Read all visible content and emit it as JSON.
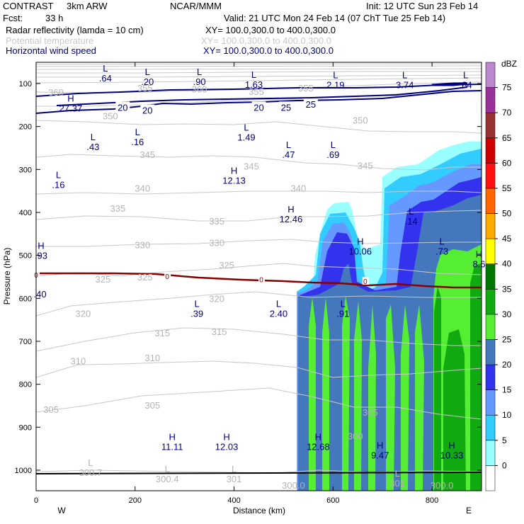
{
  "header": {
    "project": "CONTRAST",
    "model": "3km ARW",
    "org": "NCAR/MMM",
    "init": "Init: 12 UTC Sun 23 Feb 14",
    "fcst_label": "Fcst:",
    "fcst_value": "33 h",
    "valid": "Valid: 21 UTC Mon 24 Feb 14 (07 ChT Tue 25 Feb 14)"
  },
  "fields": [
    {
      "name": "Radar reflectivity (lamda = 10 cm)",
      "xy": "XY= 100.0,300.0 to 400.0,300.0",
      "color": "#000000"
    },
    {
      "name": "Potential temperature",
      "xy": "XY= 100.0,300.0 to 400.0,300.0",
      "color": "#c8c8c8"
    },
    {
      "name": "Horizontal wind speed",
      "xy": "XY= 100.0,300.0 to 400.0,300.0",
      "color": "#000080"
    }
  ],
  "chart_data": {
    "type": "cross-section",
    "xlabel": "Distance (km)",
    "ylabel": "Pressure (hPa)",
    "xlim": [
      0,
      900
    ],
    "ylim": [
      1050,
      65
    ],
    "xticks": [
      "0",
      "200",
      "400",
      "600",
      "800"
    ],
    "yticks": [
      "100",
      "200",
      "300",
      "400",
      "500",
      "600",
      "700",
      "800",
      "900",
      "1000"
    ],
    "left_end": "W",
    "right_end": "E",
    "colorbar": {
      "unit": "dBZ",
      "levels": [
        "0",
        "5",
        "10",
        "15",
        "20",
        "25",
        "30",
        "35",
        "40",
        "45",
        "50",
        "55",
        "60",
        "65",
        "70",
        "75"
      ],
      "colors": [
        "#ffffff",
        "#99ffff",
        "#33ccff",
        "#6699ff",
        "#3333ee",
        "#4477bb",
        "#55ee33",
        "#11aa11",
        "#007700",
        "#ffff00",
        "#ffaa00",
        "#ff6600",
        "#ff1111",
        "#cc0000",
        "#993333",
        "#993399",
        "#bb88cc"
      ]
    },
    "theta_labels": [
      {
        "text": "350",
        "x": 150,
        "p": 175
      },
      {
        "text": "350",
        "x": 655,
        "p": 185
      },
      {
        "text": "345",
        "x": 225,
        "p": 265
      },
      {
        "text": "345",
        "x": 435,
        "p": 292
      },
      {
        "text": "345",
        "x": 665,
        "p": 290
      },
      {
        "text": "340",
        "x": 215,
        "p": 343
      },
      {
        "text": "340",
        "x": 530,
        "p": 343
      },
      {
        "text": "335",
        "x": 165,
        "p": 390
      },
      {
        "text": "335",
        "x": 365,
        "p": 420
      },
      {
        "text": "330",
        "x": 215,
        "p": 475
      },
      {
        "text": "330",
        "x": 365,
        "p": 470
      },
      {
        "text": "325",
        "x": 385,
        "p": 522
      },
      {
        "text": "325",
        "x": 220,
        "p": 550
      },
      {
        "text": "325",
        "x": 135,
        "p": 555
      },
      {
        "text": "320",
        "x": 95,
        "p": 635
      },
      {
        "text": "320",
        "x": 365,
        "p": 600
      },
      {
        "text": "315",
        "x": 255,
        "p": 680
      },
      {
        "text": "315",
        "x": 370,
        "p": 677
      },
      {
        "text": "310",
        "x": 85,
        "p": 745
      },
      {
        "text": "310",
        "x": 235,
        "p": 738
      },
      {
        "text": "305",
        "x": 30,
        "p": 858
      },
      {
        "text": "305",
        "x": 235,
        "p": 848
      },
      {
        "text": "305",
        "x": 675,
        "p": 865
      },
      {
        "text": "300",
        "x": 645,
        "p": 920
      },
      {
        "text": "360",
        "x": 330,
        "p": 112
      },
      {
        "text": "360",
        "x": 40,
        "p": 120
      },
      {
        "text": "355",
        "x": 220,
        "p": 110
      },
      {
        "text": "355",
        "x": 445,
        "p": 118
      },
      {
        "text": "355",
        "x": 545,
        "p": 110
      }
    ],
    "wind_labels": [
      {
        "text": "20",
        "x": 175,
        "p": 155
      },
      {
        "text": "20",
        "x": 225,
        "p": 162
      },
      {
        "text": "20",
        "x": 450,
        "p": 155
      },
      {
        "text": "25",
        "x": 505,
        "p": 155
      },
      {
        "text": "25",
        "x": 555,
        "p": 148
      }
    ],
    "freezing_level": {
      "label": "0",
      "p_points": [
        545,
        545,
        545,
        545,
        550,
        556,
        560,
        565,
        568,
        570
      ]
    },
    "extrema": [
      {
        "type": "L",
        "value": ".64",
        "x": 140,
        "p": 72,
        "color": "navy"
      },
      {
        "type": "L",
        "value": ".20",
        "x": 225,
        "p": 80,
        "color": "navy"
      },
      {
        "type": "L",
        "value": ".90",
        "x": 330,
        "p": 80,
        "color": "navy"
      },
      {
        "type": "L",
        "value": "1.63",
        "x": 440,
        "p": 87,
        "color": "navy"
      },
      {
        "type": "L",
        "value": "2.19",
        "x": 605,
        "p": 88,
        "color": "navy"
      },
      {
        "type": "L",
        "value": "3.74",
        "x": 745,
        "p": 88,
        "color": "navy"
      },
      {
        "type": "L",
        "value": ".84",
        "x": 868,
        "p": 88,
        "color": "navy"
      },
      {
        "type": "H",
        "value": "27.37",
        "x": 70,
        "p": 142,
        "color": "navy"
      },
      {
        "type": "L",
        "value": ".43",
        "x": 115,
        "p": 232,
        "color": "navy"
      },
      {
        "type": "L",
        "value": ".16",
        "x": 205,
        "p": 220,
        "color": "navy"
      },
      {
        "type": "L",
        "value": "1.49",
        "x": 425,
        "p": 210,
        "color": "navy"
      },
      {
        "type": "L",
        "value": ".47",
        "x": 510,
        "p": 250,
        "color": "navy"
      },
      {
        "type": "L",
        "value": ".69",
        "x": 600,
        "p": 250,
        "color": "navy"
      },
      {
        "type": "L",
        "value": ".16",
        "x": 45,
        "p": 320,
        "color": "navy"
      },
      {
        "type": "H",
        "value": "12.13",
        "x": 400,
        "p": 310,
        "color": "navy"
      },
      {
        "type": "H",
        "value": "12.46",
        "x": 515,
        "p": 400,
        "color": "navy"
      },
      {
        "type": "L",
        "value": ".14",
        "x": 758,
        "p": 405,
        "color": "navy"
      },
      {
        "type": "H",
        "value": "10.06",
        "x": 655,
        "p": 475,
        "color": "navy"
      },
      {
        "type": "L",
        "value": ".73",
        "x": 820,
        "p": 475,
        "color": "navy"
      },
      {
        "type": "H",
        "value": ".93",
        "x": 10,
        "p": 485,
        "color": "navy"
      },
      {
        "type": "H",
        "value": "8.6",
        "x": 895,
        "p": 505,
        "color": "navy"
      },
      {
        "type": "",
        "value": ".40",
        "x": 8,
        "p": 575,
        "color": "navy"
      },
      {
        "type": "L",
        "value": ".39",
        "x": 325,
        "p": 620,
        "color": "navy"
      },
      {
        "type": "L",
        "value": "2.40",
        "x": 490,
        "p": 620,
        "color": "navy"
      },
      {
        "type": "L",
        "value": ".91",
        "x": 620,
        "p": 620,
        "color": "navy"
      },
      {
        "type": "H",
        "value": "11.11",
        "x": 275,
        "p": 930,
        "color": "navy"
      },
      {
        "type": "H",
        "value": "12.03",
        "x": 385,
        "p": 930,
        "color": "navy"
      },
      {
        "type": "H",
        "value": "12.68",
        "x": 570,
        "p": 930,
        "color": "navy"
      },
      {
        "type": "H",
        "value": "9.47",
        "x": 695,
        "p": 950,
        "color": "navy"
      },
      {
        "type": "H",
        "value": "10.33",
        "x": 840,
        "p": 950,
        "color": "navy"
      },
      {
        "type": "L",
        "value": "300.7",
        "x": 110,
        "p": 990,
        "color": "gray"
      },
      {
        "type": "L",
        "value": "300.4",
        "x": 265,
        "p": 1005,
        "color": "gray"
      },
      {
        "type": "L",
        "value": "301",
        "x": 400,
        "p": 1005,
        "color": "gray"
      },
      {
        "type": "",
        "value": "300.0",
        "x": 520,
        "p": 1020,
        "color": "gray"
      },
      {
        "type": "L",
        "value": "301",
        "x": 730,
        "p": 1015,
        "color": "gray"
      },
      {
        "type": "",
        "value": "300.0",
        "x": 820,
        "p": 1020,
        "color": "gray"
      }
    ]
  }
}
